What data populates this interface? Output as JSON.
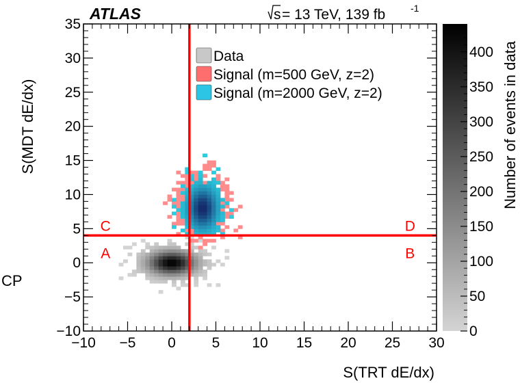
{
  "chart_data": {
    "type": "heatmap",
    "experiment_label": "ATLAS",
    "energy_label": {
      "prefix": "s",
      "main": " = 13 TeV, 139 fb",
      "superscript": "-1"
    },
    "side_label": "CP",
    "xlabel": "S(TRT dE/dx)",
    "ylabel": "S(MDT dE/dx)",
    "xlim": [
      -10,
      30
    ],
    "ylim": [
      -10,
      35
    ],
    "xticks": [
      -10,
      -5,
      0,
      5,
      10,
      15,
      20,
      25,
      30
    ],
    "yticks": [
      -10,
      -5,
      0,
      5,
      10,
      15,
      20,
      25,
      30,
      35
    ],
    "colorbar": {
      "label": "Number of events in data",
      "range": [
        0,
        440
      ],
      "ticks": [
        0,
        50,
        100,
        150,
        200,
        250,
        300,
        350,
        400
      ],
      "color_low": "#d4d4d4",
      "color_high": "#000000"
    },
    "cuts": {
      "x": 2,
      "y": 4,
      "color": "#ff0000"
    },
    "regions": [
      {
        "label": "A",
        "x": -7.5,
        "y": 1.5
      },
      {
        "label": "B",
        "x": 27,
        "y": 1.5
      },
      {
        "label": "C",
        "x": -7.5,
        "y": 5.5
      },
      {
        "label": "D",
        "x": 27,
        "y": 5.5
      }
    ],
    "legend": {
      "position": "top-center",
      "entries": [
        {
          "name": "Data",
          "color": "#c8c8c8"
        },
        {
          "name": "Signal (m=500 GeV, z=2)",
          "color": "#ff6e6e"
        },
        {
          "name": "Signal (m=2000 GeV, z=2)",
          "color": "#2dc5e6"
        }
      ]
    },
    "series": [
      {
        "name": "Data",
        "distribution": "2D density",
        "center": [
          0,
          0
        ],
        "spread": [
          2.3,
          1.5
        ],
        "x_range": [
          -7.5,
          7.5
        ],
        "y_range": [
          -5,
          4
        ],
        "peak_events": 440
      },
      {
        "name": "Signal (m=500 GeV, z=2)",
        "center": [
          3.3,
          8.5
        ],
        "spread": [
          1.8,
          2.7
        ],
        "x_range": [
          -1,
          8
        ],
        "y_range": [
          2,
          16
        ]
      },
      {
        "name": "Signal (m=2000 GeV, z=2)",
        "center": [
          3.5,
          8
        ],
        "spread": [
          1.3,
          2.4
        ],
        "x_range": [
          0,
          7.5
        ],
        "y_range": [
          4,
          18.5
        ]
      }
    ]
  }
}
